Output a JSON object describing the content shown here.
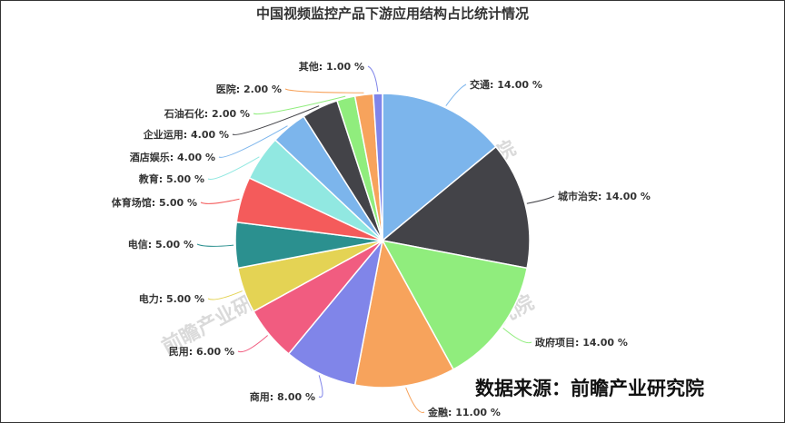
{
  "chart_data": {
    "type": "pie",
    "title": "中国视频监控产品下游应用结构占比统计情况",
    "slices": [
      {
        "label": "交通",
        "value": 14.0,
        "display": "14.00 %",
        "color": "#7cb5ec"
      },
      {
        "label": "城市治安",
        "value": 14.0,
        "display": "14.00 %",
        "color": "#434348"
      },
      {
        "label": "政府项目",
        "value": 14.0,
        "display": "14.00 %",
        "color": "#90ed7d"
      },
      {
        "label": "金融",
        "value": 11.0,
        "display": "11.00 %",
        "color": "#f7a35c"
      },
      {
        "label": "商用",
        "value": 8.0,
        "display": "8.00 %",
        "color": "#8085e9"
      },
      {
        "label": "民用",
        "value": 6.0,
        "display": "6.00 %",
        "color": "#f15c80"
      },
      {
        "label": "电力",
        "value": 5.0,
        "display": "5.00 %",
        "color": "#e4d354"
      },
      {
        "label": "电信",
        "value": 5.0,
        "display": "5.00 %",
        "color": "#2b908f"
      },
      {
        "label": "体育场馆",
        "value": 5.0,
        "display": "5.00 %",
        "color": "#f45b5b"
      },
      {
        "label": "教育",
        "value": 5.0,
        "display": "5.00 %",
        "color": "#91e8e1"
      },
      {
        "label": "酒店娱乐",
        "value": 4.0,
        "display": "4.00 %",
        "color": "#7cb5ec"
      },
      {
        "label": "企业运用",
        "value": 4.0,
        "display": "4.00 %",
        "color": "#434348"
      },
      {
        "label": "石油石化",
        "value": 2.0,
        "display": "2.00 %",
        "color": "#90ed7d"
      },
      {
        "label": "医院",
        "value": 2.0,
        "display": "2.00 %",
        "color": "#f7a35c"
      },
      {
        "label": "其他",
        "value": 1.0,
        "display": "1.00 %",
        "color": "#8085e9"
      }
    ]
  },
  "source": "数据来源：前瞻产业研究院",
  "watermark": "前瞻产业研究院"
}
